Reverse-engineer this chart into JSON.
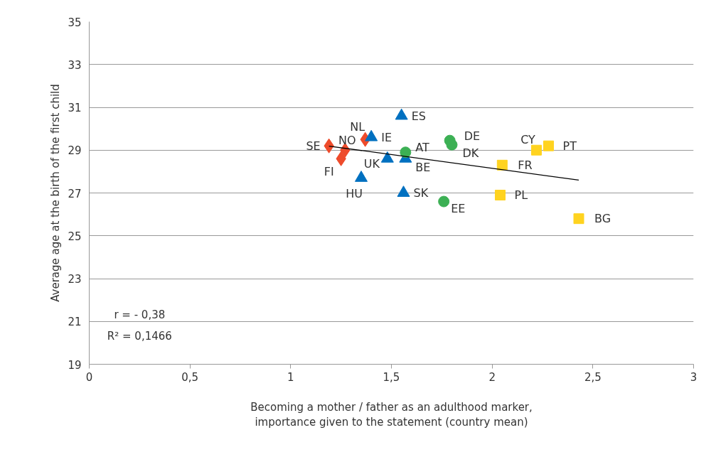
{
  "chart_data": {
    "type": "scatter",
    "xlabel": "Becoming a mother / father as an adulthood marker,\nimportance given to the statement (country mean)",
    "ylabel": "Average age at the birth of the first child",
    "xlim": [
      0,
      3
    ],
    "xticks": [
      0,
      {
        "value": 0.5,
        "label": "0,5"
      },
      1,
      {
        "value": 1.5,
        "label": "1,5"
      },
      2,
      {
        "value": 2.5,
        "label": "2,5"
      },
      3
    ],
    "ylim": [
      19,
      35
    ],
    "yticks": [
      19,
      21,
      23,
      25,
      27,
      29,
      31,
      33,
      35
    ],
    "grid": "y",
    "series": [
      {
        "color": "#ee4b2b",
        "marker": "diamond",
        "x": [
          1.19,
          1.27,
          1.25,
          1.37
        ],
        "values": [
          29.2,
          29.0,
          28.6,
          29.5
        ]
      },
      {
        "color": "#0070c0",
        "marker": "triangle",
        "x": [
          1.55,
          1.4,
          1.48,
          1.57,
          1.35,
          1.56
        ],
        "values": [
          30.6,
          29.6,
          28.6,
          28.6,
          27.7,
          27.0
        ]
      },
      {
        "color": "#3cb054",
        "marker": "circle",
        "x": [
          1.57,
          1.79,
          1.8,
          1.76
        ],
        "values": [
          28.9,
          29.45,
          29.25,
          26.6
        ]
      },
      {
        "color": "#ffd320",
        "marker": "square",
        "x": [
          2.22,
          2.28,
          2.05,
          2.04,
          2.43
        ],
        "values": [
          29.0,
          29.2,
          28.3,
          26.9,
          25.8
        ]
      },
      {
        "type": "line",
        "color": "#000000",
        "x": [
          1.19,
          2.43
        ],
        "values": [
          29.19,
          27.6
        ]
      }
    ],
    "annotations": [
      {
        "text": "SE",
        "x": 1.19,
        "y": 29.2
      },
      {
        "text": "NO",
        "x": 1.27,
        "y": 29.0
      },
      {
        "text": "FI",
        "x": 1.25,
        "y": 28.6
      },
      {
        "text": "NL",
        "x": 1.37,
        "y": 29.5
      },
      {
        "text": "ES",
        "x": 1.55,
        "y": 30.6
      },
      {
        "text": "IE",
        "x": 1.4,
        "y": 29.6
      },
      {
        "text": "UK",
        "x": 1.48,
        "y": 28.6
      },
      {
        "text": "BE",
        "x": 1.57,
        "y": 28.6
      },
      {
        "text": "HU",
        "x": 1.35,
        "y": 27.7
      },
      {
        "text": "SK",
        "x": 1.56,
        "y": 27.0
      },
      {
        "text": "AT",
        "x": 1.57,
        "y": 28.9
      },
      {
        "text": "DE",
        "x": 1.79,
        "y": 29.45
      },
      {
        "text": "DK",
        "x": 1.8,
        "y": 29.25
      },
      {
        "text": "EE",
        "x": 1.76,
        "y": 26.6
      },
      {
        "text": "CY",
        "x": 2.22,
        "y": 29.0
      },
      {
        "text": "PT",
        "x": 2.28,
        "y": 29.2
      },
      {
        "text": "FR",
        "x": 2.05,
        "y": 28.3
      },
      {
        "text": "PL",
        "x": 2.04,
        "y": 26.9
      },
      {
        "text": "BG",
        "x": 2.43,
        "y": 25.8
      },
      "r = - 0,38",
      "R² = 0,1466"
    ]
  }
}
